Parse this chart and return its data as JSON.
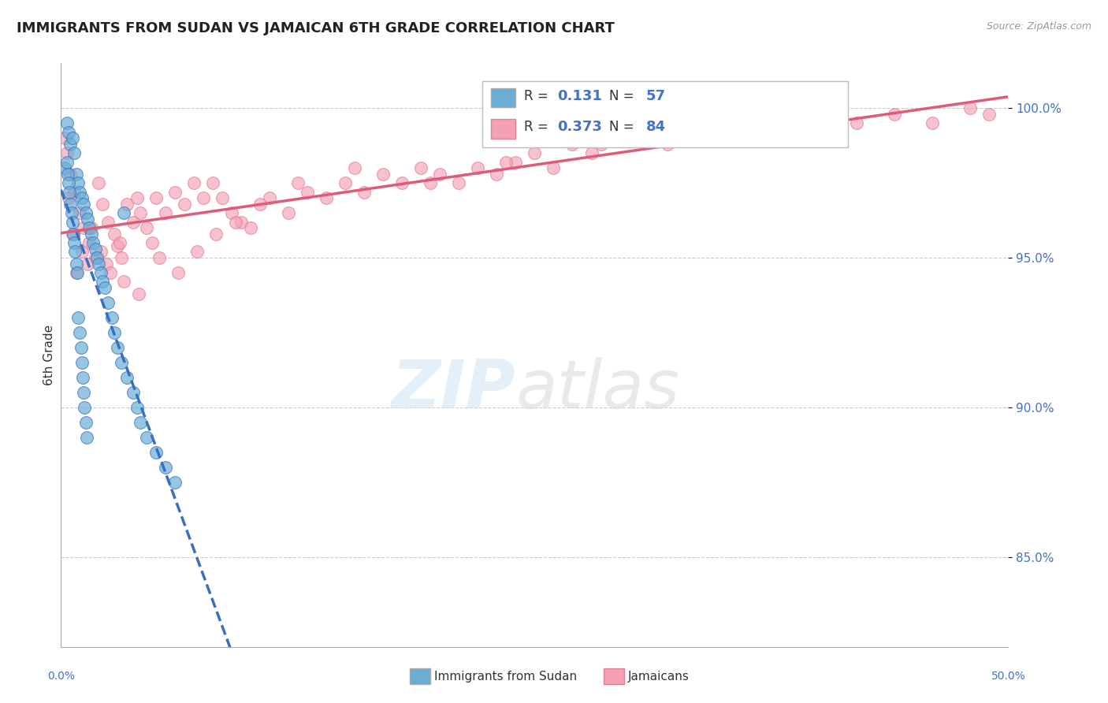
{
  "title": "IMMIGRANTS FROM SUDAN VS JAMAICAN 6TH GRADE CORRELATION CHART",
  "source_text": "Source: ZipAtlas.com",
  "ylabel": "6th Grade",
  "y_ticks": [
    85.0,
    90.0,
    95.0,
    100.0
  ],
  "y_tick_labels": [
    "85.0%",
    "90.0%",
    "95.0%",
    "100.0%"
  ],
  "xlim": [
    0.0,
    50.0
  ],
  "ylim": [
    82.0,
    101.5
  ],
  "legend_v1": "0.131",
  "legend_nv1": "57",
  "legend_v2": "0.373",
  "legend_nv2": "84",
  "color_blue": "#6aaed6",
  "color_pink": "#f4a0b5",
  "color_line_blue": "#3a6fbf",
  "color_line_pink": "#e05a7a",
  "color_legend_val": "#4472c4",
  "sudan_x": [
    0.3,
    0.4,
    0.5,
    0.6,
    0.7,
    0.8,
    0.9,
    1.0,
    1.1,
    1.2,
    1.3,
    1.4,
    1.5,
    1.6,
    1.7,
    1.8,
    1.9,
    2.0,
    2.1,
    2.2,
    2.3,
    2.5,
    2.7,
    2.8,
    3.0,
    3.2,
    3.5,
    3.8,
    4.0,
    4.2,
    4.5,
    5.0,
    5.5,
    6.0,
    0.2,
    0.3,
    0.35,
    0.4,
    0.45,
    0.5,
    0.55,
    0.6,
    0.65,
    0.7,
    0.75,
    0.8,
    0.85,
    0.9,
    1.0,
    1.05,
    1.1,
    1.15,
    1.2,
    1.25,
    1.3,
    1.35,
    3.3
  ],
  "sudan_y": [
    99.5,
    99.2,
    98.8,
    99.0,
    98.5,
    97.8,
    97.5,
    97.2,
    97.0,
    96.8,
    96.5,
    96.3,
    96.0,
    95.8,
    95.5,
    95.3,
    95.0,
    94.8,
    94.5,
    94.2,
    94.0,
    93.5,
    93.0,
    92.5,
    92.0,
    91.5,
    91.0,
    90.5,
    90.0,
    89.5,
    89.0,
    88.5,
    88.0,
    87.5,
    98.0,
    98.2,
    97.8,
    97.5,
    97.2,
    96.8,
    96.5,
    96.2,
    95.8,
    95.5,
    95.2,
    94.8,
    94.5,
    93.0,
    92.5,
    92.0,
    91.5,
    91.0,
    90.5,
    90.0,
    89.5,
    89.0,
    96.5
  ],
  "jamaica_x": [
    0.2,
    0.3,
    0.5,
    0.7,
    1.0,
    1.2,
    1.5,
    1.8,
    2.0,
    2.2,
    2.5,
    2.8,
    3.0,
    3.2,
    3.5,
    3.8,
    4.0,
    4.2,
    4.5,
    4.8,
    5.0,
    5.5,
    6.0,
    6.5,
    7.0,
    7.5,
    8.0,
    8.5,
    9.0,
    9.5,
    10.0,
    11.0,
    12.0,
    13.0,
    14.0,
    15.0,
    16.0,
    17.0,
    18.0,
    19.0,
    20.0,
    21.0,
    22.0,
    23.0,
    24.0,
    25.0,
    26.0,
    27.0,
    28.0,
    30.0,
    32.0,
    34.0,
    36.0,
    38.0,
    40.0,
    42.0,
    44.0,
    46.0,
    48.0,
    49.0,
    0.4,
    0.6,
    0.8,
    1.1,
    1.4,
    1.6,
    2.1,
    2.4,
    2.6,
    3.1,
    3.3,
    4.1,
    5.2,
    6.2,
    7.2,
    8.2,
    9.2,
    10.5,
    12.5,
    15.5,
    19.5,
    23.5,
    28.5,
    35.0
  ],
  "jamaica_y": [
    99.0,
    98.5,
    97.8,
    97.2,
    96.5,
    96.0,
    95.5,
    95.0,
    97.5,
    96.8,
    96.2,
    95.8,
    95.4,
    95.0,
    96.8,
    96.2,
    97.0,
    96.5,
    96.0,
    95.5,
    97.0,
    96.5,
    97.2,
    96.8,
    97.5,
    97.0,
    97.5,
    97.0,
    96.5,
    96.2,
    96.0,
    97.0,
    96.5,
    97.2,
    97.0,
    97.5,
    97.2,
    97.8,
    97.5,
    98.0,
    97.8,
    97.5,
    98.0,
    97.8,
    98.2,
    98.5,
    98.0,
    98.8,
    98.5,
    99.0,
    98.8,
    99.2,
    99.0,
    99.5,
    99.2,
    99.5,
    99.8,
    99.5,
    100.0,
    99.8,
    97.0,
    95.8,
    94.5,
    95.2,
    94.8,
    96.0,
    95.2,
    94.8,
    94.5,
    95.5,
    94.2,
    93.8,
    95.0,
    94.5,
    95.2,
    95.8,
    96.2,
    96.8,
    97.5,
    98.0,
    97.5,
    98.2,
    98.8,
    99.5
  ]
}
